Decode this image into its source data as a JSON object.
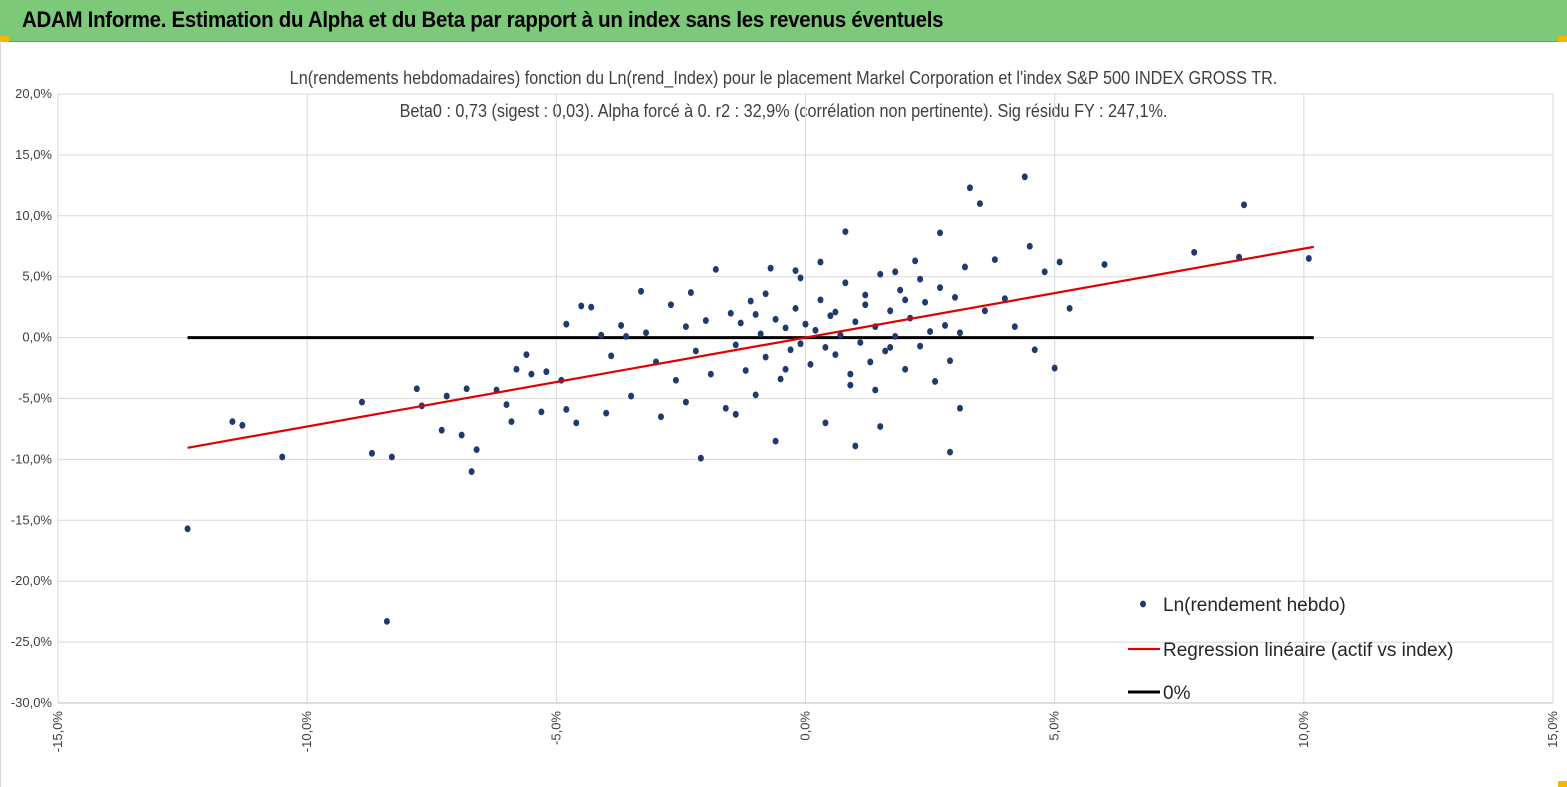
{
  "banner": {
    "title": "ADAM Informe. Estimation du Alpha et du Beta par rapport à un index sans les revenus éventuels",
    "background": "#7dc97a",
    "corner_color": "#f2b705"
  },
  "chart_data": {
    "type": "scatter",
    "title": "Ln(rendements hebdomadaires) fonction du Ln(rend_Index) pour le placement Markel Corporation et l'index S&P 500 INDEX GROSS TR.",
    "subtitle": "Beta0 : 0,73 (sigest : 0,03). Alpha forcé à 0. r2 : 32,9% (corrélation non pertinente). Sig résidu FY : 247,1%.",
    "xlabel": "",
    "ylabel": "",
    "xlim": [
      -15,
      15
    ],
    "ylim": [
      -30,
      20
    ],
    "x_ticks": [
      -15,
      -10,
      -5,
      0,
      5,
      10,
      15
    ],
    "y_ticks": [
      20,
      15,
      10,
      5,
      0,
      -5,
      -10,
      -15,
      -20,
      -25,
      -30
    ],
    "x_tick_labels": [
      "-15,0%",
      "-10,0%",
      "-5,0%",
      "0,0%",
      "5,0%",
      "10,0%",
      "15,0%"
    ],
    "y_tick_labels": [
      "20,0%",
      "15,0%",
      "10,0%",
      "5,0%",
      "0,0%",
      "-5,0%",
      "-10,0%",
      "-15,0%",
      "-20,0%",
      "-25,0%",
      "-30,0%"
    ],
    "grid": true,
    "legend_position": "bottom-right",
    "series": [
      {
        "name": "Ln(rendement hebdo)",
        "kind": "scatter",
        "color": "#1f3b6e",
        "points": [
          [
            -12.4,
            -15.7
          ],
          [
            -11.5,
            -6.9
          ],
          [
            -11.3,
            -7.2
          ],
          [
            -10.5,
            -9.8
          ],
          [
            -8.9,
            -5.3
          ],
          [
            -8.7,
            -9.5
          ],
          [
            -8.4,
            -23.3
          ],
          [
            -8.3,
            -9.8
          ],
          [
            -7.8,
            -4.2
          ],
          [
            -7.7,
            -5.6
          ],
          [
            -7.3,
            -7.6
          ],
          [
            -7.2,
            -4.8
          ],
          [
            -6.9,
            -8.0
          ],
          [
            -6.8,
            -4.2
          ],
          [
            -6.7,
            -11.0
          ],
          [
            -6.6,
            -9.2
          ],
          [
            -6.2,
            -4.3
          ],
          [
            -5.9,
            -6.9
          ],
          [
            -5.8,
            -2.6
          ],
          [
            -5.6,
            -1.4
          ],
          [
            -5.5,
            -3.0
          ],
          [
            -5.2,
            -2.8
          ],
          [
            -4.9,
            -3.5
          ],
          [
            -4.8,
            1.1
          ],
          [
            -4.8,
            -5.9
          ],
          [
            -4.5,
            2.6
          ],
          [
            -4.3,
            2.5
          ],
          [
            -4.1,
            0.2
          ],
          [
            -4.0,
            -6.2
          ],
          [
            -3.9,
            -1.5
          ],
          [
            -3.7,
            1.0
          ],
          [
            -3.5,
            -4.8
          ],
          [
            -3.3,
            3.8
          ],
          [
            -3.2,
            0.4
          ],
          [
            -3.0,
            -2.0
          ],
          [
            -2.9,
            -6.5
          ],
          [
            -2.7,
            2.7
          ],
          [
            -2.6,
            -3.5
          ],
          [
            -2.4,
            0.9
          ],
          [
            -2.4,
            -5.3
          ],
          [
            -2.3,
            3.7
          ],
          [
            -2.2,
            -1.1
          ],
          [
            -2.1,
            -9.9
          ],
          [
            -2.0,
            1.4
          ],
          [
            -1.9,
            -3.0
          ],
          [
            -1.8,
            5.6
          ],
          [
            -1.6,
            -5.8
          ],
          [
            -1.5,
            2.0
          ],
          [
            -1.4,
            -0.6
          ],
          [
            -1.3,
            1.2
          ],
          [
            -1.2,
            -2.7
          ],
          [
            -1.1,
            3.0
          ],
          [
            -1.0,
            -4.7
          ],
          [
            -0.9,
            0.3
          ],
          [
            -0.8,
            -1.6
          ],
          [
            -0.7,
            5.7
          ],
          [
            -0.6,
            1.5
          ],
          [
            -0.5,
            -3.4
          ],
          [
            -0.4,
            0.8
          ],
          [
            -0.3,
            -1.0
          ],
          [
            -0.2,
            2.4
          ],
          [
            -0.1,
            -0.5
          ],
          [
            0.0,
            1.1
          ],
          [
            0.1,
            -2.2
          ],
          [
            0.2,
            0.6
          ],
          [
            0.3,
            3.1
          ],
          [
            0.4,
            -0.8
          ],
          [
            0.5,
            1.8
          ],
          [
            0.6,
            -1.4
          ],
          [
            0.7,
            0.2
          ],
          [
            0.8,
            4.5
          ],
          [
            0.9,
            -3.0
          ],
          [
            1.0,
            1.3
          ],
          [
            1.1,
            -0.4
          ],
          [
            1.2,
            2.7
          ],
          [
            1.3,
            -2.0
          ],
          [
            1.4,
            0.9
          ],
          [
            1.5,
            5.2
          ],
          [
            1.6,
            -1.1
          ],
          [
            1.7,
            2.2
          ],
          [
            1.8,
            0.1
          ],
          [
            1.9,
            3.9
          ],
          [
            2.0,
            -2.6
          ],
          [
            2.1,
            1.6
          ],
          [
            2.2,
            6.3
          ],
          [
            2.3,
            -0.7
          ],
          [
            2.4,
            2.9
          ],
          [
            2.5,
            0.5
          ],
          [
            2.6,
            -3.6
          ],
          [
            2.7,
            4.1
          ],
          [
            2.8,
            1.0
          ],
          [
            2.9,
            -1.9
          ],
          [
            3.0,
            3.3
          ],
          [
            3.1,
            0.4
          ],
          [
            3.2,
            5.8
          ],
          [
            3.3,
            12.3
          ],
          [
            3.5,
            11.0
          ],
          [
            3.6,
            2.2
          ],
          [
            3.8,
            6.4
          ],
          [
            4.0,
            3.2
          ],
          [
            4.2,
            0.9
          ],
          [
            4.4,
            13.2
          ],
          [
            4.5,
            7.5
          ],
          [
            4.6,
            -1.0
          ],
          [
            4.8,
            5.4
          ],
          [
            5.0,
            -2.5
          ],
          [
            5.1,
            6.2
          ],
          [
            5.3,
            2.4
          ],
          [
            6.0,
            6.0
          ],
          [
            7.8,
            7.0
          ],
          [
            8.7,
            6.6
          ],
          [
            8.8,
            10.9
          ],
          [
            10.1,
            6.5
          ],
          [
            0.3,
            6.2
          ],
          [
            -0.2,
            5.5
          ],
          [
            0.8,
            8.7
          ],
          [
            1.8,
            5.4
          ],
          [
            2.7,
            8.6
          ],
          [
            3.1,
            -5.8
          ],
          [
            2.9,
            -9.4
          ],
          [
            1.0,
            -8.9
          ],
          [
            1.5,
            -7.3
          ],
          [
            0.4,
            -7.0
          ],
          [
            -0.6,
            -8.5
          ],
          [
            -1.4,
            -6.3
          ],
          [
            -3.6,
            0.1
          ],
          [
            -4.6,
            -7.0
          ],
          [
            -5.3,
            -6.1
          ],
          [
            -6.0,
            -5.5
          ],
          [
            1.2,
            3.5
          ],
          [
            -0.4,
            -2.6
          ],
          [
            0.6,
            2.1
          ],
          [
            1.7,
            -0.8
          ],
          [
            2.3,
            4.8
          ],
          [
            -1.0,
            1.9
          ],
          [
            0.9,
            -3.9
          ],
          [
            -0.8,
            3.6
          ],
          [
            1.4,
            -4.3
          ],
          [
            2.0,
            3.1
          ],
          [
            -0.1,
            4.9
          ]
        ]
      },
      {
        "name": "Regression linéaire (actif vs index)",
        "kind": "line",
        "color": "#e00000",
        "points": [
          [
            -12.4,
            -9.05
          ],
          [
            10.2,
            7.45
          ]
        ]
      },
      {
        "name": "0%",
        "kind": "line",
        "color": "#000000",
        "points": [
          [
            -12.4,
            0
          ],
          [
            10.2,
            0
          ]
        ]
      }
    ]
  }
}
